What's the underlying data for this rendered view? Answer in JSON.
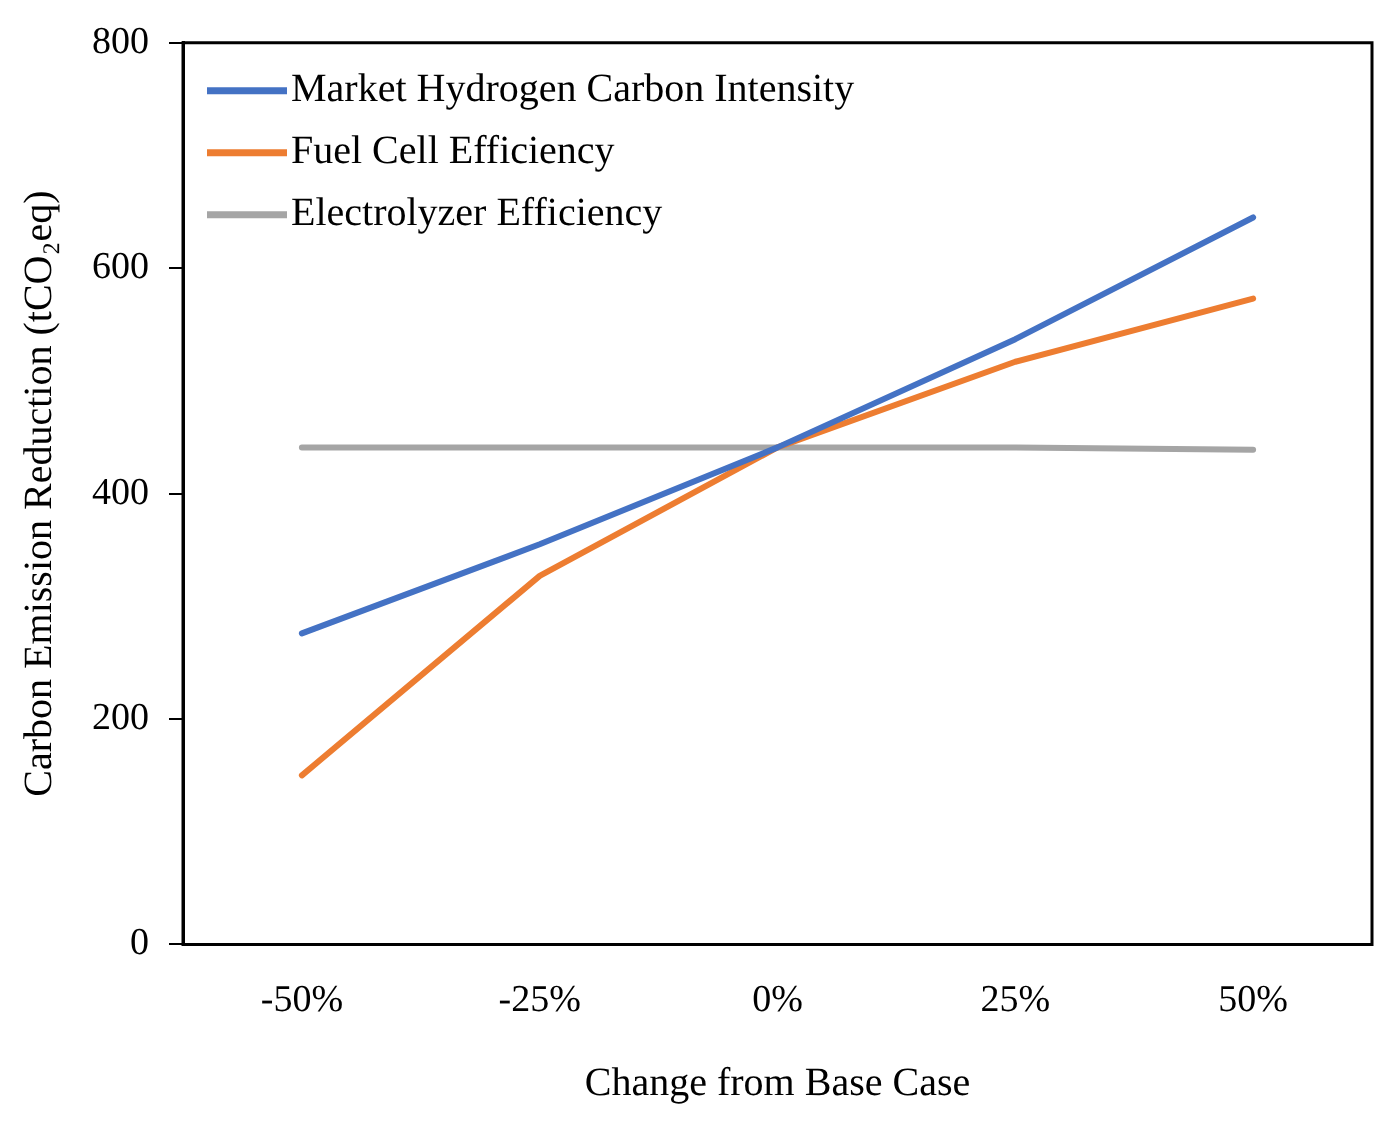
{
  "chart_data": {
    "type": "line",
    "xlabel": "Change from Base Case",
    "ylabel": "Carbon Emission Reduction (tCO₂eq)",
    "categories": [
      "-50%",
      "-25%",
      "0%",
      "25%",
      "50%"
    ],
    "series": [
      {
        "name": "Market Hydrogen Carbon Intensity",
        "color": "#4472c4",
        "values": [
          276,
          355,
          441,
          537,
          645
        ]
      },
      {
        "name": "Fuel Cell Efficiency",
        "color": "#ed7d31",
        "values": [
          150,
          327,
          441,
          517,
          573
        ]
      },
      {
        "name": "Electrolyzer Efficiency",
        "color": "#a5a5a5",
        "values": [
          441,
          441,
          441,
          441,
          439
        ]
      }
    ],
    "ylim": [
      0,
      800
    ],
    "yticks": [
      0,
      200,
      400,
      600,
      800
    ],
    "grid": false,
    "legend": "top left",
    "marker": "none",
    "line_style": "solid"
  }
}
